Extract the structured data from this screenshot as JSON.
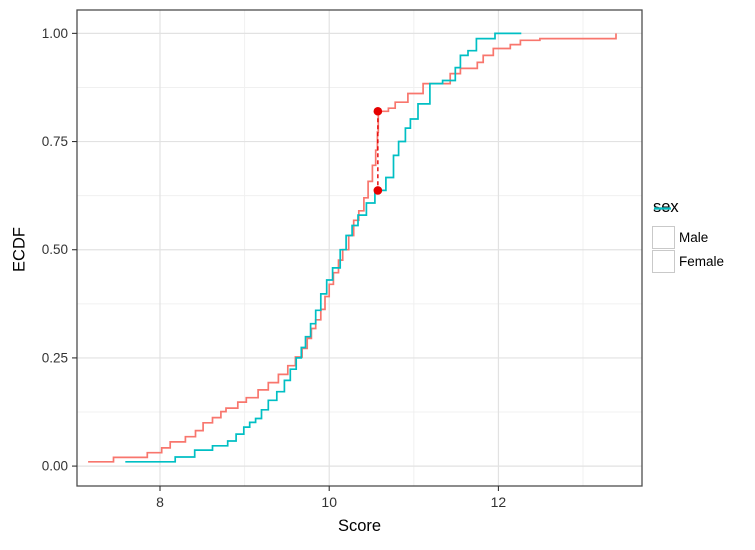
{
  "chart_data": {
    "type": "line",
    "subtype": "ecdf-step",
    "title": "",
    "xlabel": "Score",
    "ylabel": "ECDF",
    "xlim": [
      7.019,
      13.697
    ],
    "ylim": [
      -0.046,
      1.054
    ],
    "grid": true,
    "x_ticks": [
      {
        "value": 8,
        "label": "8"
      },
      {
        "value": 10,
        "label": "10"
      },
      {
        "value": 12,
        "label": "12"
      }
    ],
    "x_minor_ticks": [
      9,
      11,
      13
    ],
    "y_ticks": [
      {
        "value": 0.0,
        "label": "0.00"
      },
      {
        "value": 0.25,
        "label": "0.25"
      },
      {
        "value": 0.5,
        "label": "0.50"
      },
      {
        "value": 0.75,
        "label": "0.75"
      },
      {
        "value": 1.0,
        "label": "1.00"
      }
    ],
    "y_minor_ticks": [
      0.125,
      0.375,
      0.625,
      0.875
    ],
    "legend": {
      "title": "sex",
      "position": "right"
    },
    "series": [
      {
        "name": "Male",
        "color": "#F8766D",
        "points": [
          [
            7.15,
            0.01
          ],
          [
            7.45,
            0.02
          ],
          [
            7.85,
            0.031
          ],
          [
            8.02,
            0.042
          ],
          [
            8.12,
            0.056
          ],
          [
            8.3,
            0.068
          ],
          [
            8.42,
            0.082
          ],
          [
            8.51,
            0.1
          ],
          [
            8.62,
            0.112
          ],
          [
            8.72,
            0.126
          ],
          [
            8.78,
            0.134
          ],
          [
            8.92,
            0.148
          ],
          [
            9.02,
            0.158
          ],
          [
            9.16,
            0.176
          ],
          [
            9.28,
            0.193
          ],
          [
            9.4,
            0.212
          ],
          [
            9.51,
            0.232
          ],
          [
            9.6,
            0.252
          ],
          [
            9.68,
            0.272
          ],
          [
            9.74,
            0.295
          ],
          [
            9.79,
            0.318
          ],
          [
            9.84,
            0.338
          ],
          [
            9.9,
            0.362
          ],
          [
            9.95,
            0.392
          ],
          [
            10.0,
            0.42
          ],
          [
            10.05,
            0.447
          ],
          [
            10.11,
            0.476
          ],
          [
            10.16,
            0.5
          ],
          [
            10.23,
            0.533
          ],
          [
            10.29,
            0.568
          ],
          [
            10.35,
            0.59
          ],
          [
            10.41,
            0.62
          ],
          [
            10.46,
            0.658
          ],
          [
            10.51,
            0.695
          ],
          [
            10.55,
            0.73
          ],
          [
            10.57,
            0.772
          ],
          [
            10.58,
            0.82
          ],
          [
            10.7,
            0.827
          ],
          [
            10.78,
            0.841
          ],
          [
            10.93,
            0.861
          ],
          [
            11.11,
            0.884
          ],
          [
            11.43,
            0.907
          ],
          [
            11.55,
            0.919
          ],
          [
            11.75,
            0.933
          ],
          [
            11.82,
            0.949
          ],
          [
            11.94,
            0.965
          ],
          [
            12.14,
            0.974
          ],
          [
            12.26,
            0.984
          ],
          [
            12.49,
            0.988
          ],
          [
            13.39,
            1.0
          ]
        ]
      },
      {
        "name": "Female",
        "color": "#00BFC4",
        "points": [
          [
            7.59,
            0.01
          ],
          [
            8.18,
            0.021
          ],
          [
            8.41,
            0.037
          ],
          [
            8.62,
            0.047
          ],
          [
            8.8,
            0.058
          ],
          [
            8.9,
            0.074
          ],
          [
            8.99,
            0.09
          ],
          [
            9.06,
            0.101
          ],
          [
            9.13,
            0.11
          ],
          [
            9.2,
            0.13
          ],
          [
            9.28,
            0.152
          ],
          [
            9.38,
            0.172
          ],
          [
            9.47,
            0.198
          ],
          [
            9.54,
            0.224
          ],
          [
            9.61,
            0.25
          ],
          [
            9.67,
            0.274
          ],
          [
            9.72,
            0.299
          ],
          [
            9.78,
            0.329
          ],
          [
            9.84,
            0.36
          ],
          [
            9.9,
            0.398
          ],
          [
            9.97,
            0.43
          ],
          [
            10.04,
            0.458
          ],
          [
            10.13,
            0.5
          ],
          [
            10.2,
            0.533
          ],
          [
            10.27,
            0.556
          ],
          [
            10.34,
            0.58
          ],
          [
            10.44,
            0.608
          ],
          [
            10.54,
            0.637
          ],
          [
            10.67,
            0.667
          ],
          [
            10.76,
            0.718
          ],
          [
            10.82,
            0.75
          ],
          [
            10.9,
            0.781
          ],
          [
            10.96,
            0.802
          ],
          [
            11.05,
            0.837
          ],
          [
            11.19,
            0.884
          ],
          [
            11.34,
            0.891
          ],
          [
            11.49,
            0.921
          ],
          [
            11.55,
            0.949
          ],
          [
            11.64,
            0.96
          ],
          [
            11.74,
            0.988
          ],
          [
            11.96,
            1.0
          ],
          [
            12.27,
            1.0
          ]
        ]
      }
    ],
    "annotation": {
      "type": "ks-distance",
      "x": 10.575,
      "ecdf_lower": 0.637,
      "ecdf_upper": 0.82,
      "color": "#E50000",
      "line_style": "dashed"
    },
    "colors": {
      "panel_bg": "#FFFFFF",
      "panel_border": "#4D4D4D",
      "grid_major": "#E2E2E2",
      "grid_minor": "#F0F0F0",
      "axis_text": "#333333",
      "tick_mark": "#333333"
    }
  }
}
